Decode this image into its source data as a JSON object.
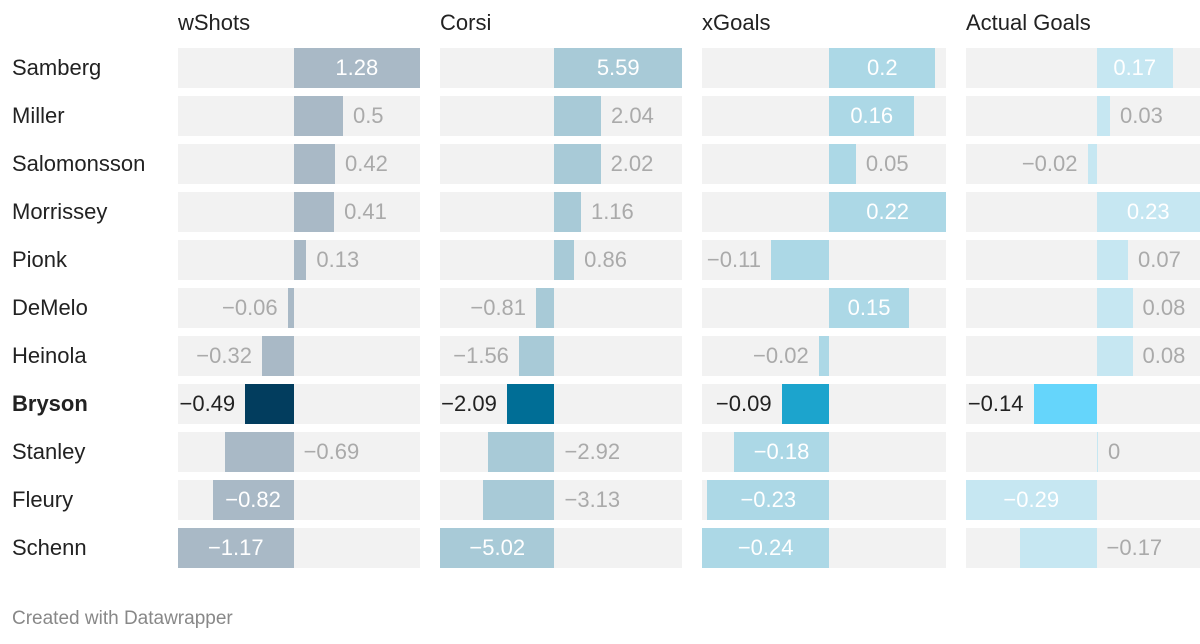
{
  "chart_data": {
    "type": "table",
    "rows": [
      "Samberg",
      "Miller",
      "Salomonsson",
      "Morrissey",
      "Pionk",
      "DeMelo",
      "Heinola",
      "Bryson",
      "Stanley",
      "Fleury",
      "Schenn"
    ],
    "highlight_row": "Bryson",
    "series": [
      {
        "name": "wShots",
        "values": [
          1.28,
          0.5,
          0.42,
          0.41,
          0.13,
          -0.06,
          -0.32,
          -0.49,
          -0.69,
          -0.82,
          -1.17
        ],
        "labels": [
          "1.28",
          "0.5",
          "0.42",
          "0.41",
          "0.13",
          "−0.06",
          "−0.32",
          "−0.49",
          "−0.69",
          "−0.82",
          "−1.17"
        ],
        "color": "#a9b9c6",
        "highlight_color": "#023d5e"
      },
      {
        "name": "Corsi",
        "values": [
          5.59,
          2.04,
          2.02,
          1.16,
          0.86,
          -0.81,
          -1.56,
          -2.09,
          -2.92,
          -3.13,
          -5.02
        ],
        "labels": [
          "5.59",
          "2.04",
          "2.02",
          "1.16",
          "0.86",
          "−0.81",
          "−1.56",
          "−2.09",
          "−2.92",
          "−3.13",
          "−5.02"
        ],
        "color": "#a8cad7",
        "highlight_color": "#006e96"
      },
      {
        "name": "xGoals",
        "values": [
          0.2,
          0.16,
          0.05,
          0.22,
          -0.11,
          0.15,
          -0.02,
          -0.09,
          -0.18,
          -0.23,
          -0.24
        ],
        "labels": [
          "0.2",
          "0.16",
          "0.05",
          "0.22",
          "−0.11",
          "0.15",
          "−0.02",
          "−0.09",
          "−0.18",
          "−0.23",
          "−0.24"
        ],
        "color": "#acd8e6",
        "highlight_color": "#1ca4cd"
      },
      {
        "name": "Actual Goals",
        "values": [
          0.17,
          0.03,
          -0.02,
          0.23,
          0.07,
          0.08,
          0.08,
          -0.14,
          0,
          -0.29,
          -0.17
        ],
        "labels": [
          "0.17",
          "0.03",
          "−0.02",
          "0.23",
          "0.07",
          "0.08",
          "0.08",
          "−0.14",
          "0",
          "−0.29",
          "−0.17"
        ],
        "color": "#c6e7f2",
        "highlight_color": "#65d5fb"
      }
    ]
  },
  "footer": "Created with Datawrapper"
}
